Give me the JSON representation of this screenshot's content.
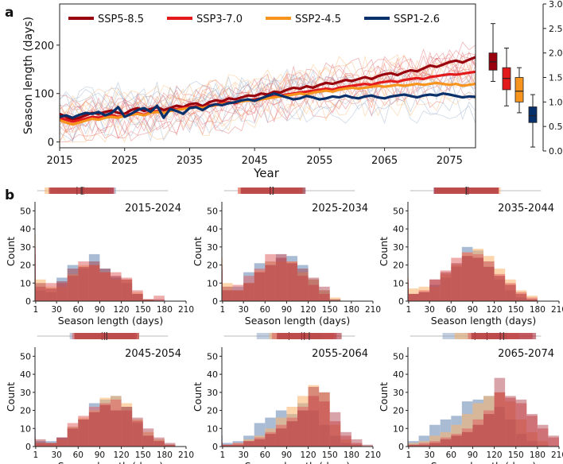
{
  "panel_labels": {
    "a": "a",
    "b": "b"
  },
  "colors": {
    "ssp585": "#99000d",
    "ssp370": "#e31a1c",
    "ssp245": "#f7941d",
    "ssp126": "#08306b",
    "hist_126": "#8ea6c6",
    "hist_245": "#f9b36a",
    "hist_370": "#e0595b",
    "hist_585": "#a01c28"
  },
  "chart_data": [
    {
      "type": "line",
      "title": "",
      "xlabel": "Year",
      "ylabel": "Season length (days)",
      "xlim": [
        2015,
        2079
      ],
      "ylim": [
        -12,
        285
      ],
      "xticks": [
        "2015",
        "2025",
        "2035",
        "2045",
        "2055",
        "2065",
        "2075"
      ],
      "yticks": [
        "0",
        "100",
        "200"
      ],
      "legend": [
        "SSP5-8.5",
        "SSP3-7.0",
        "SSP2-4.5",
        "SSP1-2.6"
      ],
      "x_start": 2015,
      "series": [
        {
          "name": "SSP5-8.5",
          "key": "ssp585",
          "values": [
            58,
            52,
            45,
            50,
            55,
            60,
            58,
            62,
            65,
            60,
            58,
            66,
            70,
            64,
            68,
            72,
            66,
            70,
            75,
            72,
            78,
            80,
            74,
            82,
            86,
            84,
            90,
            88,
            92,
            96,
            95,
            100,
            98,
            104,
            102,
            108,
            112,
            110,
            115,
            112,
            118,
            122,
            120,
            124,
            128,
            126,
            130,
            134,
            130,
            136,
            140,
            142,
            138,
            144,
            148,
            146,
            152,
            158,
            155,
            160,
            165,
            168,
            164,
            170,
            175
          ]
        },
        {
          "name": "SSP3-7.0",
          "key": "ssp370",
          "values": [
            50,
            46,
            42,
            45,
            48,
            52,
            50,
            54,
            56,
            52,
            55,
            58,
            60,
            56,
            62,
            64,
            60,
            66,
            68,
            70,
            72,
            74,
            70,
            76,
            78,
            80,
            82,
            80,
            84,
            86,
            88,
            90,
            92,
            94,
            96,
            98,
            100,
            102,
            104,
            106,
            108,
            110,
            108,
            112,
            114,
            116,
            118,
            120,
            118,
            122,
            124,
            126,
            124,
            128,
            130,
            132,
            130,
            134,
            136,
            138,
            140,
            139,
            141,
            143,
            145
          ]
        },
        {
          "name": "SSP2-4.5",
          "key": "ssp245",
          "values": [
            45,
            40,
            36,
            40,
            44,
            48,
            46,
            50,
            52,
            50,
            54,
            56,
            58,
            55,
            60,
            62,
            60,
            64,
            66,
            68,
            70,
            72,
            70,
            74,
            76,
            78,
            80,
            82,
            84,
            86,
            85,
            88,
            90,
            92,
            94,
            96,
            98,
            100,
            98,
            102,
            104,
            106,
            104,
            108,
            110,
            112,
            110,
            112,
            114,
            116,
            114,
            116,
            118,
            116,
            118,
            120,
            118,
            120,
            122,
            120,
            118,
            120,
            116,
            118,
            120
          ]
        },
        {
          "name": "SSP1-2.6",
          "key": "ssp126",
          "values": [
            52,
            55,
            50,
            56,
            60,
            58,
            62,
            55,
            60,
            72,
            52,
            58,
            66,
            70,
            62,
            75,
            50,
            68,
            64,
            58,
            70,
            72,
            66,
            74,
            78,
            76,
            80,
            82,
            86,
            88,
            85,
            90,
            95,
            100,
            96,
            92,
            88,
            90,
            95,
            92,
            88,
            90,
            94,
            92,
            96,
            92,
            90,
            94,
            96,
            92,
            90,
            94,
            96,
            98,
            95,
            92,
            96,
            98,
            96,
            100,
            98,
            95,
            92,
            94,
            93
          ]
        }
      ]
    },
    {
      "type": "boxplot",
      "right_axis": {
        "ylim": [
          0,
          3.0
        ],
        "yticks": [
          "0.0",
          "0.5",
          "1.0",
          "1.5",
          "2.0",
          "2.5",
          "3.0"
        ]
      },
      "boxes": [
        {
          "name": "SSP5-8.5",
          "key": "ssp585",
          "whisker_low": 1.42,
          "q1": 1.65,
          "median": 1.82,
          "q3": 2.0,
          "whisker_high": 2.6
        },
        {
          "name": "SSP3-7.0",
          "key": "ssp370",
          "whisker_low": 0.92,
          "q1": 1.25,
          "median": 1.48,
          "q3": 1.7,
          "whisker_high": 2.1
        },
        {
          "name": "SSP2-4.5",
          "key": "ssp245",
          "whisker_low": 0.78,
          "q1": 1.0,
          "median": 1.22,
          "q3": 1.5,
          "whisker_high": 1.7
        },
        {
          "name": "SSP1-2.6",
          "key": "ssp126",
          "whisker_low": 0.08,
          "q1": 0.58,
          "median": 0.72,
          "q3": 0.9,
          "whisker_high": 1.15
        }
      ]
    },
    {
      "type": "histogram",
      "xlabel": "Season length (days)",
      "ylabel": "Count",
      "ylim": [
        0,
        55
      ],
      "yticks": [
        "0",
        "10",
        "20",
        "30",
        "40",
        "50"
      ],
      "xticks": [
        "1",
        "30",
        "60",
        "90",
        "120",
        "150",
        "180",
        "210"
      ],
      "bin_edges": [
        0,
        1,
        15,
        30,
        45,
        60,
        75,
        90,
        105,
        120,
        135,
        150,
        165,
        180,
        195,
        210
      ],
      "series_order": [
        "SSP1-2.6",
        "SSP2-4.5",
        "SSP3-7.0",
        "SSP5-8.5"
      ],
      "panels": [
        {
          "title": "2015-2024",
          "counts": {
            "SSP1-2.6": [
              18,
              6,
              5,
              13,
              20,
              18,
              26,
              18,
              13,
              10,
              4,
              1,
              0,
              0,
              0
            ],
            "SSP2-4.5": [
              37,
              12,
              8,
              8,
              15,
              20,
              20,
              16,
              12,
              12,
              5,
              1,
              0,
              0,
              0
            ],
            "SSP3-7.0": [
              30,
              8,
              10,
              10,
              14,
              22,
              20,
              16,
              16,
              13,
              6,
              1,
              3,
              0,
              0
            ],
            "SSP5-8.5": [
              26,
              10,
              7,
              11,
              18,
              19,
              22,
              18,
              14,
              12,
              4,
              1,
              1,
              0,
              0
            ]
          }
        },
        {
          "title": "2025-2034",
          "counts": {
            "SSP1-2.6": [
              18,
              6,
              8,
              16,
              21,
              22,
              26,
              25,
              20,
              12,
              6,
              1,
              0,
              0,
              0
            ],
            "SSP2-4.5": [
              24,
              10,
              6,
              10,
              17,
              22,
              22,
              22,
              16,
              12,
              6,
              2,
              0,
              0,
              0
            ],
            "SSP3-7.0": [
              17,
              6,
              9,
              14,
              18,
              26,
              26,
              22,
              14,
              9,
              4,
              0,
              0,
              0,
              0
            ],
            "SSP5-8.5": [
              20,
              8,
              6,
              10,
              16,
              20,
              24,
              21,
              18,
              13,
              8,
              1,
              0,
              0,
              0
            ]
          }
        },
        {
          "title": "2035-2044",
          "counts": {
            "SSP1-2.6": [
              10,
              4,
              5,
              9,
              13,
              19,
              30,
              28,
              22,
              12,
              6,
              2,
              1,
              0,
              0
            ],
            "SSP2-4.5": [
              13,
              7,
              8,
              8,
              15,
              20,
              27,
              29,
              25,
              18,
              12,
              6,
              3,
              0,
              0
            ],
            "SSP3-7.0": [
              12,
              4,
              6,
              12,
              17,
              24,
              27,
              26,
              22,
              15,
              10,
              5,
              2,
              0,
              0
            ],
            "SSP5-8.5": [
              10,
              4,
              5,
              12,
              16,
              21,
              25,
              24,
              19,
              14,
              9,
              4,
              1,
              0,
              0
            ]
          }
        },
        {
          "title": "2045-2054",
          "counts": {
            "SSP1-2.6": [
              10,
              3,
              3,
              5,
              11,
              15,
              24,
              26,
              28,
              22,
              13,
              6,
              3,
              1,
              0
            ],
            "SSP2-4.5": [
              5,
              2,
              2,
              4,
              11,
              16,
              20,
              27,
              28,
              24,
              15,
              8,
              4,
              1,
              0
            ],
            "SSP3-7.0": [
              4,
              2,
              2,
              5,
              13,
              17,
              22,
              24,
              26,
              20,
              14,
              6,
              3,
              1,
              0
            ],
            "SSP5-8.5": [
              5,
              4,
              2,
              5,
              10,
              15,
              19,
              23,
              20,
              22,
              16,
              10,
              5,
              2,
              0
            ]
          }
        },
        {
          "title": "2055-2064",
          "counts": {
            "SSP1-2.6": [
              6,
              2,
              3,
              6,
              13,
              16,
              20,
              18,
              24,
              20,
              12,
              6,
              2,
              1,
              0
            ],
            "SSP2-4.5": [
              3,
              1,
              2,
              4,
              6,
              10,
              16,
              22,
              28,
              34,
              30,
              12,
              4,
              1,
              0
            ],
            "SSP3-7.0": [
              2,
              1,
              2,
              3,
              5,
              8,
              12,
              16,
              22,
              28,
              25,
              14,
              6,
              2,
              0
            ],
            "SSP5-8.5": [
              2,
              1,
              1,
              3,
              4,
              7,
              10,
              14,
              20,
              33,
              30,
              19,
              8,
              4,
              1
            ]
          }
        },
        {
          "title": "2065-2074",
          "counts": {
            "SSP1-2.6": [
              3,
              3,
              6,
              12,
              15,
              17,
              25,
              26,
              28,
              22,
              15,
              7,
              3,
              1,
              0
            ],
            "SSP2-4.5": [
              2,
              2,
              3,
              6,
              8,
              12,
              18,
              24,
              28,
              30,
              25,
              15,
              8,
              3,
              0
            ],
            "SSP3-7.0": [
              1,
              1,
              2,
              3,
              5,
              7,
              10,
              15,
              20,
              30,
              27,
              24,
              17,
              10,
              5
            ],
            "SSP5-8.5": [
              1,
              1,
              1,
              2,
              4,
              6,
              8,
              12,
              18,
              38,
              28,
              26,
              18,
              12,
              6
            ]
          }
        }
      ]
    }
  ]
}
